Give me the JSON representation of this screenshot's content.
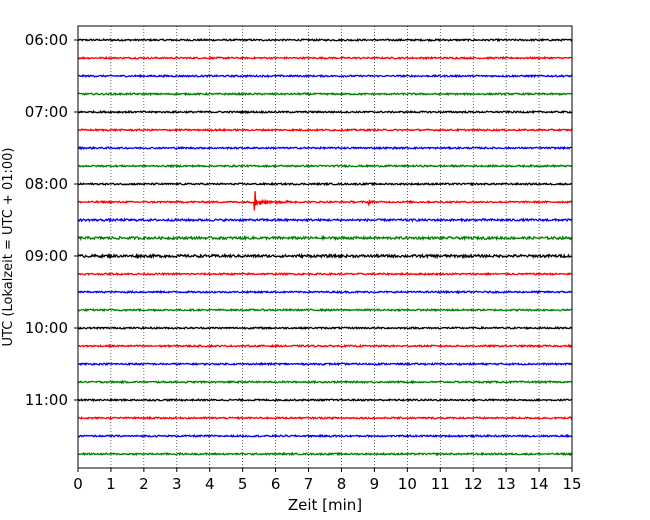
{
  "chart_data": {
    "type": "line",
    "title": "",
    "xlabel": "Zeit  [min]",
    "ylabel": "UTC (Lokalzeit = UTC + 01:00)",
    "xlim": [
      0,
      15
    ],
    "x_ticks": [
      "0",
      "1",
      "2",
      "3",
      "4",
      "5",
      "6",
      "7",
      "8",
      "9",
      "10",
      "11",
      "12",
      "13",
      "14",
      "15"
    ],
    "y_tick_labels": [
      "06:00",
      "07:00",
      "08:00",
      "09:00",
      "10:00",
      "11:00"
    ],
    "grid": "vertical dotted at each minute",
    "trace_interval_min": 15,
    "trace_colors": [
      "#000000",
      "#ff0000",
      "#0000ff",
      "#008000"
    ],
    "rows": [
      {
        "start": "06:00",
        "color": "#000000",
        "amplitude": 1.0
      },
      {
        "start": "06:15",
        "color": "#ff0000",
        "amplitude": 1.0
      },
      {
        "start": "06:30",
        "color": "#0000ff",
        "amplitude": 1.0
      },
      {
        "start": "06:45",
        "color": "#008000",
        "amplitude": 1.0
      },
      {
        "start": "07:00",
        "color": "#000000",
        "amplitude": 1.0
      },
      {
        "start": "07:15",
        "color": "#ff0000",
        "amplitude": 1.0
      },
      {
        "start": "07:30",
        "color": "#0000ff",
        "amplitude": 1.0
      },
      {
        "start": "07:45",
        "color": "#008000",
        "amplitude": 1.0
      },
      {
        "start": "08:00",
        "color": "#000000",
        "amplitude": 1.0
      },
      {
        "start": "08:15",
        "color": "#ff0000",
        "amplitude": 1.0,
        "events": [
          {
            "t": 5.35,
            "peak": 12
          },
          {
            "t": 8.82,
            "peak": 3.5
          }
        ]
      },
      {
        "start": "08:30",
        "color": "#0000ff",
        "amplitude": 1.3
      },
      {
        "start": "08:45",
        "color": "#008000",
        "amplitude": 1.5
      },
      {
        "start": "09:00",
        "color": "#000000",
        "amplitude": 1.6
      },
      {
        "start": "09:15",
        "color": "#ff0000",
        "amplitude": 1.0
      },
      {
        "start": "09:30",
        "color": "#0000ff",
        "amplitude": 1.0
      },
      {
        "start": "09:45",
        "color": "#008000",
        "amplitude": 1.0
      },
      {
        "start": "10:00",
        "color": "#000000",
        "amplitude": 1.0
      },
      {
        "start": "10:15",
        "color": "#ff0000",
        "amplitude": 1.0
      },
      {
        "start": "10:30",
        "color": "#0000ff",
        "amplitude": 1.0
      },
      {
        "start": "10:45",
        "color": "#008000",
        "amplitude": 1.0
      },
      {
        "start": "11:00",
        "color": "#000000",
        "amplitude": 1.0
      },
      {
        "start": "11:15",
        "color": "#ff0000",
        "amplitude": 1.0
      },
      {
        "start": "11:30",
        "color": "#0000ff",
        "amplitude": 1.0
      },
      {
        "start": "11:45",
        "color": "#008000",
        "amplitude": 1.0
      }
    ]
  }
}
